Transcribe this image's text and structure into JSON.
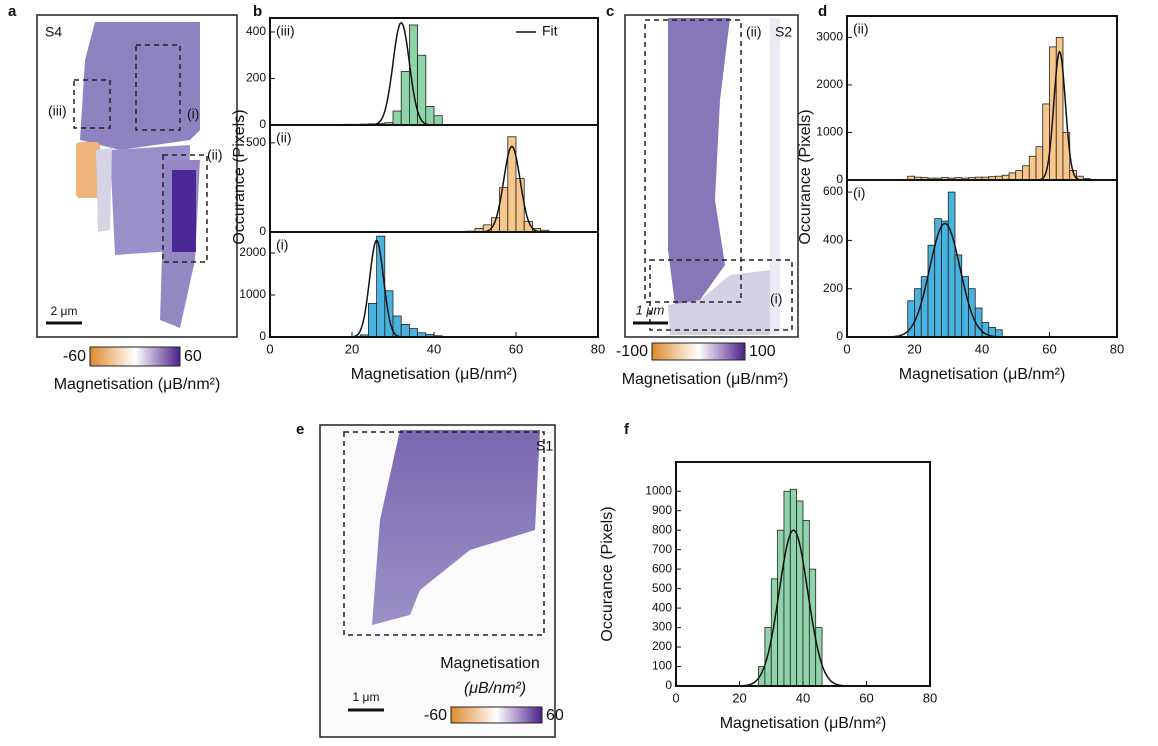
{
  "panels": {
    "a": "a",
    "b": "b",
    "c": "c",
    "d": "d",
    "e": "e",
    "f": "f"
  },
  "images": {
    "a": {
      "sample": "S4",
      "regions": [
        "(iii)",
        "(i)",
        "(ii)"
      ],
      "scale": "2 μm",
      "colorbar": {
        "min": -60,
        "max": 60,
        "label": "Magnetisation (μB/nm²)"
      }
    },
    "c": {
      "sample": "S2",
      "regions": [
        "(ii)",
        "(i)"
      ],
      "scale": "1 μm",
      "colorbar": {
        "min": -100,
        "max": 100,
        "label": "Magnetisation (μB/nm²)"
      }
    },
    "e": {
      "sample": "S1",
      "scale": "1 μm",
      "colorbar": {
        "min": -60,
        "max": 60,
        "label_1": "Magnetisation",
        "label_2": "(μB/nm²)"
      }
    }
  },
  "chart_data": [
    {
      "type": "histogram",
      "annotation": "(iii)",
      "fit_label": "Fit",
      "bins": [
        16,
        18,
        20,
        22,
        24,
        26,
        28,
        30,
        32,
        34,
        36,
        38,
        40,
        42
      ],
      "values": [
        2,
        3,
        3,
        4,
        5,
        6,
        10,
        60,
        230,
        430,
        300,
        80,
        40
      ],
      "color": "#8fd3a8",
      "fit": {
        "mean": 32,
        "sd": 2,
        "peak": 440
      },
      "xlim": [
        0,
        80
      ],
      "ylim": [
        0,
        460
      ],
      "yticks": [
        0,
        200,
        400
      ]
    },
    {
      "type": "histogram",
      "annotation": "(ii)",
      "y_label": "Occurance (Pixels)",
      "bins": [
        48,
        50,
        52,
        54,
        56,
        58,
        60,
        62,
        64,
        66,
        68
      ],
      "values": [
        5,
        20,
        40,
        80,
        250,
        534,
        300,
        60,
        20,
        10
      ],
      "color": "#f7c68a",
      "fit": {
        "mean": 59,
        "sd": 2,
        "peak": 480
      },
      "xlim": [
        0,
        80
      ],
      "ylim": [
        0,
        600
      ],
      "yticks": [
        0,
        500
      ]
    },
    {
      "type": "histogram",
      "annotation": "(i)",
      "x_label": "Magnetisation (μB/nm²)",
      "bins": [
        22,
        24,
        26,
        28,
        30,
        32,
        34,
        36,
        38,
        40,
        42,
        44,
        46
      ],
      "values": [
        50,
        800,
        2400,
        1100,
        500,
        300,
        200,
        100,
        60,
        30,
        10,
        5
      ],
      "color": "#49b3e0",
      "fit": {
        "mean": 26,
        "sd": 1.7,
        "peak": 2300
      },
      "xlim": [
        0,
        80
      ],
      "ylim": [
        0,
        2500
      ],
      "yticks": [
        0,
        1000,
        2000
      ],
      "xticks": [
        0,
        20,
        40,
        60,
        80
      ]
    },
    {
      "type": "histogram",
      "annotation": "(ii)",
      "bins": [
        18,
        20,
        22,
        24,
        26,
        28,
        30,
        32,
        34,
        36,
        38,
        40,
        42,
        44,
        46,
        48,
        50,
        52,
        54,
        56,
        58,
        60,
        62,
        64,
        66,
        68,
        70,
        72
      ],
      "values": [
        80,
        60,
        50,
        40,
        40,
        50,
        40,
        50,
        40,
        50,
        60,
        60,
        70,
        80,
        100,
        150,
        200,
        300,
        500,
        700,
        1600,
        2800,
        3000,
        1000,
        200,
        80,
        30
      ],
      "color": "#f7c68a",
      "fit": {
        "mean": 63,
        "sd": 1.7,
        "peak": 2700
      },
      "xlim": [
        0,
        80
      ],
      "ylim": [
        0,
        3450
      ],
      "yticks": [
        0,
        1000,
        2000,
        3000
      ]
    },
    {
      "type": "histogram",
      "annotation": "(i)",
      "y_label": "Occurance (Pixels)",
      "x_label": "Magnetisation (μB/nm²)",
      "bins": [
        18,
        20,
        22,
        24,
        26,
        28,
        30,
        32,
        34,
        36,
        38,
        40,
        42,
        44,
        46
      ],
      "values": [
        150,
        200,
        250,
        380,
        490,
        480,
        600,
        340,
        250,
        200,
        120,
        60,
        40,
        30
      ],
      "color": "#49b3e0",
      "fit": {
        "mean": 29,
        "sd": 4.5,
        "peak": 470
      },
      "xlim": [
        0,
        80
      ],
      "ylim": [
        0,
        650
      ],
      "yticks": [
        0,
        200,
        400,
        600
      ],
      "xticks": [
        0,
        20,
        40,
        60,
        80
      ]
    },
    {
      "type": "histogram",
      "y_label": "Occurance (Pixels)",
      "x_label": "Magnetisation (μB/nm²)",
      "bins": [
        26,
        28,
        30,
        32,
        34,
        36,
        38,
        40,
        42,
        44,
        46
      ],
      "values": [
        100,
        300,
        550,
        800,
        1000,
        1010,
        950,
        850,
        600,
        300
      ],
      "color": "#8fd3a8",
      "fit": {
        "mean": 37,
        "sd": 4.5,
        "peak": 800
      },
      "xlim": [
        0,
        80
      ],
      "ylim": [
        0,
        1150
      ],
      "yticks": [
        0,
        100,
        200,
        300,
        400,
        500,
        600,
        700,
        800,
        900,
        1000
      ],
      "xticks": [
        0,
        20,
        40,
        60,
        80
      ]
    }
  ]
}
